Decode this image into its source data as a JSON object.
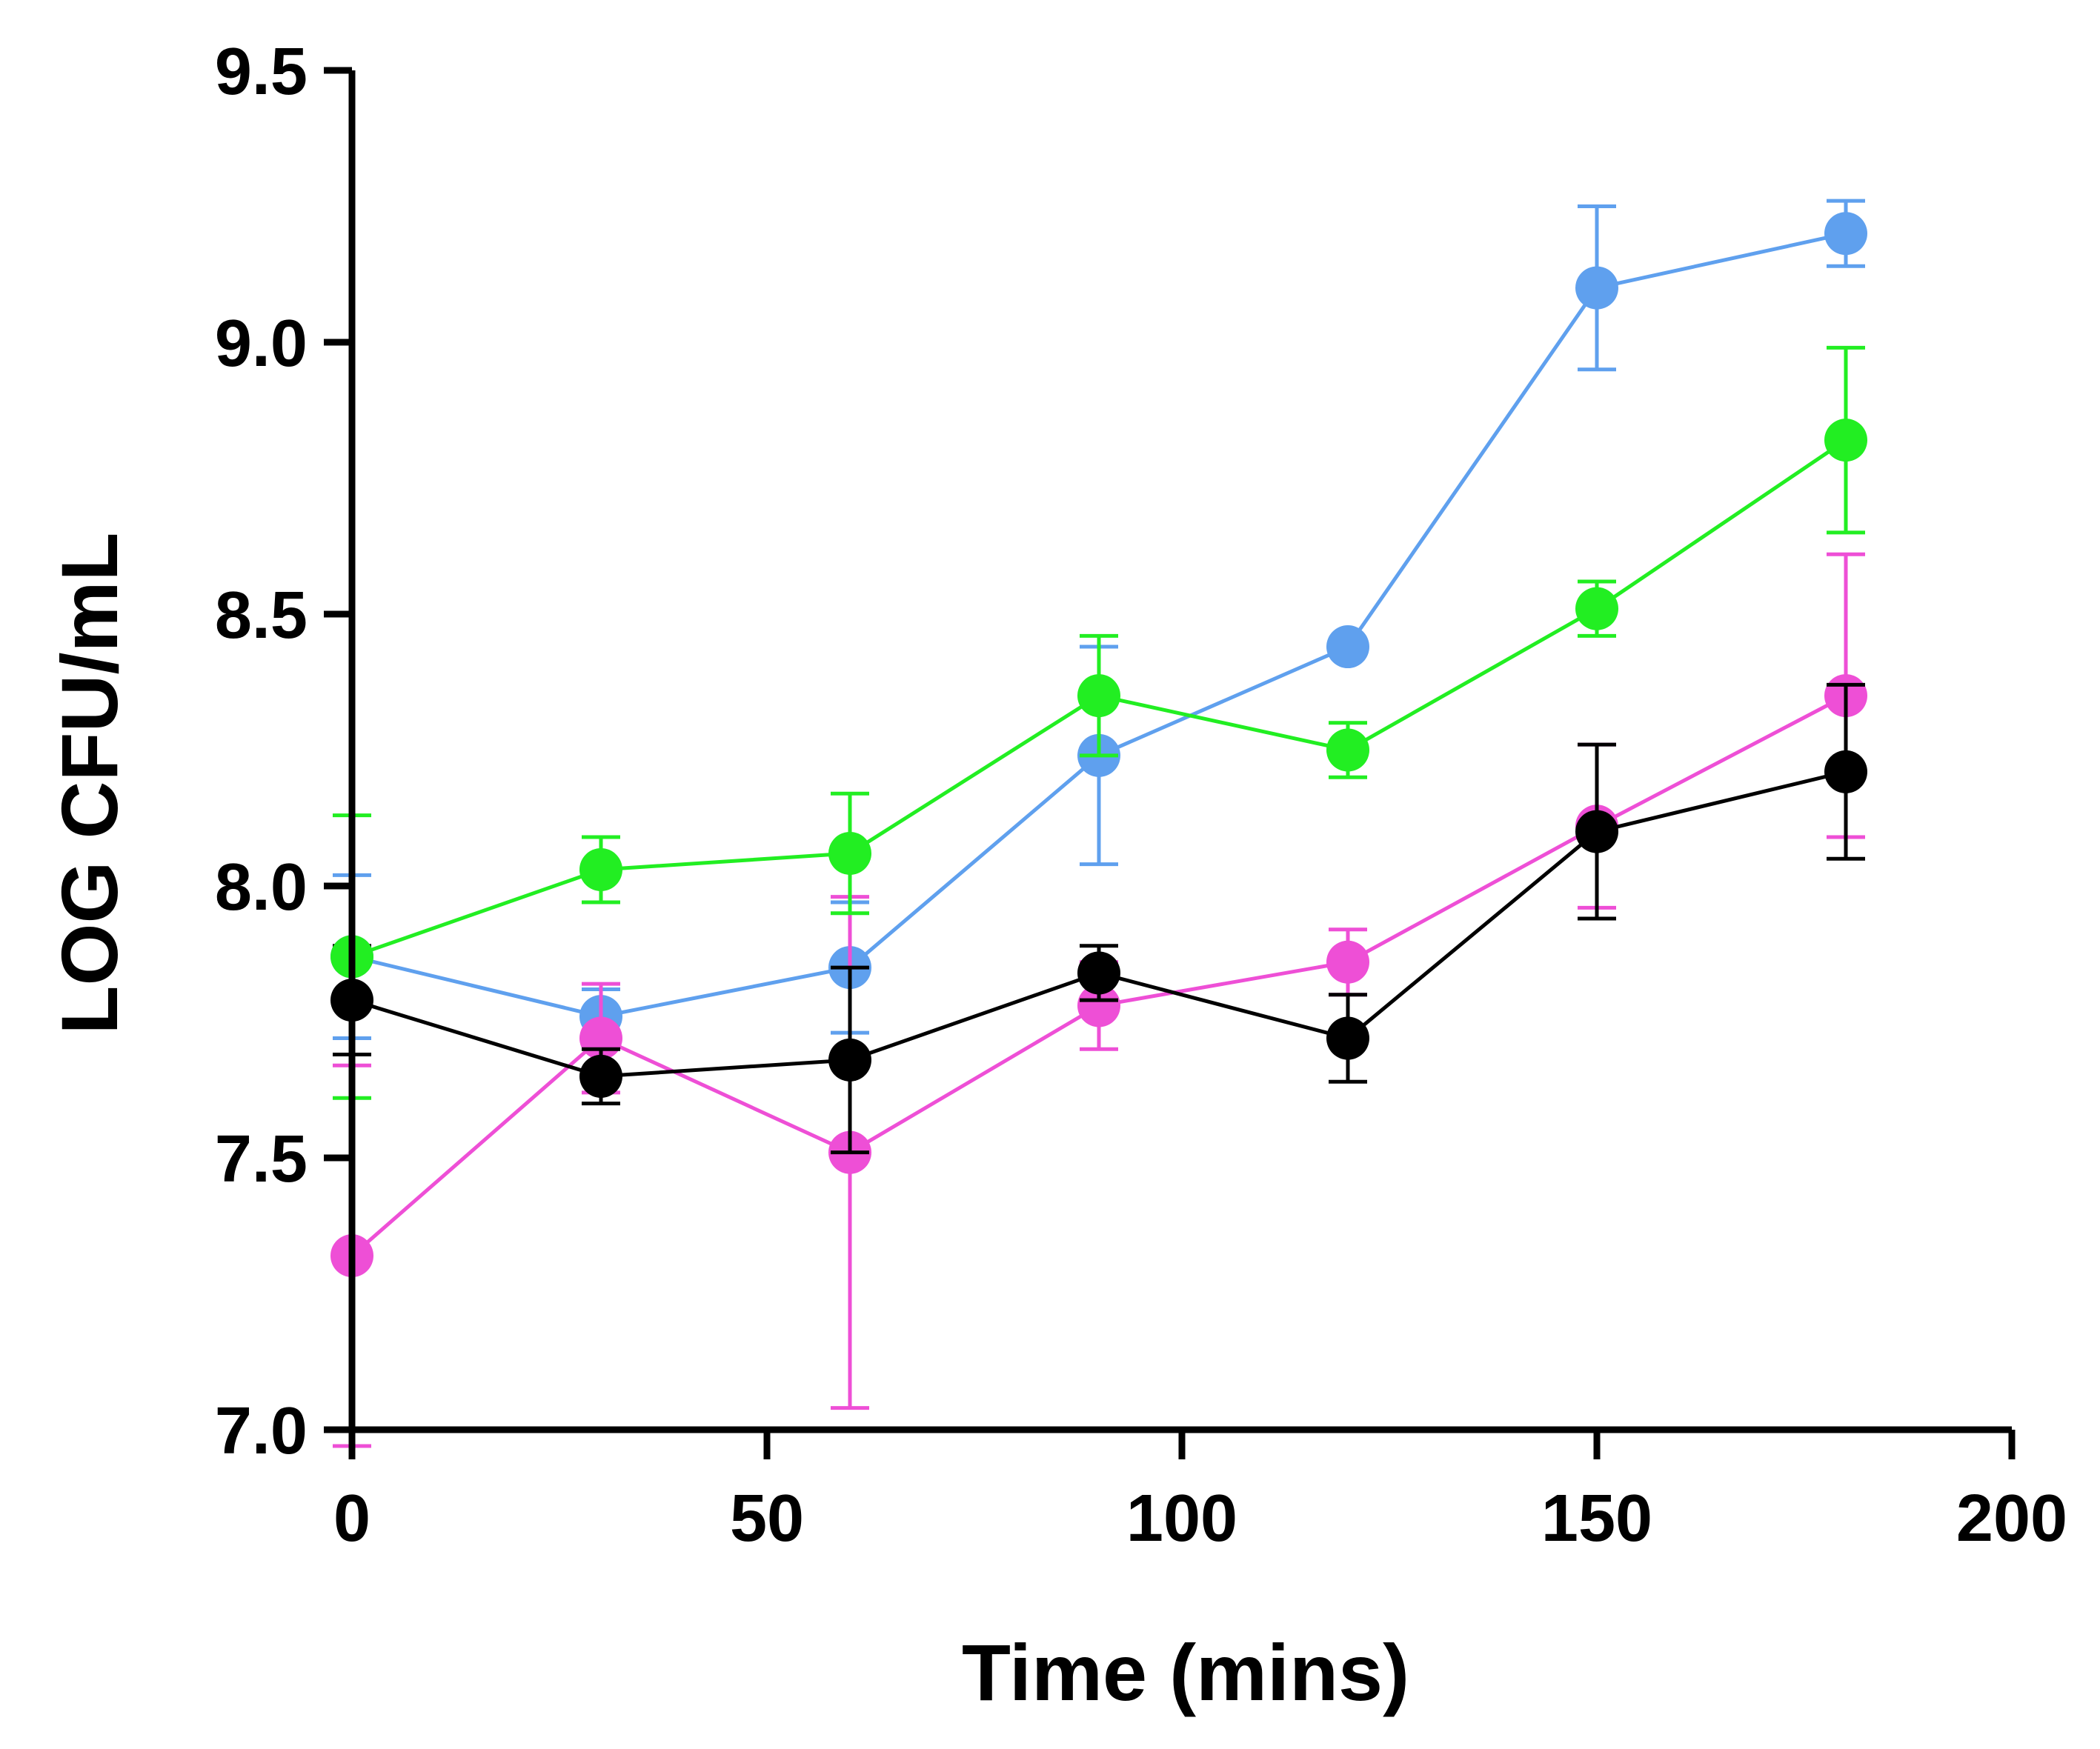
{
  "chart_data": {
    "type": "line",
    "title": "",
    "xlabel": "Time (mins)",
    "ylabel": "LOG CFU/mL",
    "xlim": [
      0,
      200
    ],
    "ylim": [
      7.0,
      9.5
    ],
    "x_ticks": [
      0,
      50,
      100,
      150,
      200
    ],
    "x_tick_labels": [
      "0",
      "50",
      "100",
      "150",
      "200"
    ],
    "y_ticks": [
      7.0,
      7.5,
      8.0,
      8.5,
      9.0,
      9.5
    ],
    "y_tick_labels": [
      "7.0",
      "7.5",
      "8.0",
      "8.5",
      "9.0",
      "9.5"
    ],
    "grid": false,
    "x": [
      0,
      30,
      60,
      90,
      120,
      150,
      180
    ],
    "series": [
      {
        "name": "blue",
        "color": "#5fa0ee",
        "values": [
          7.87,
          7.76,
          7.85,
          8.24,
          8.44,
          9.1,
          9.2
        ],
        "errors": [
          0.15,
          0.05,
          0.12,
          0.2,
          0.0,
          0.15,
          0.06
        ]
      },
      {
        "name": "magenta",
        "color": "#ee4fd6",
        "values": [
          7.32,
          7.72,
          7.51,
          7.78,
          7.86,
          8.11,
          8.35
        ],
        "errors": [
          0.35,
          0.1,
          0.47,
          0.08,
          0.06,
          0.15,
          0.26
        ]
      },
      {
        "name": "black",
        "color": "#000000",
        "values": [
          7.79,
          7.65,
          7.68,
          7.84,
          7.72,
          8.1,
          8.21
        ],
        "errors": [
          0.1,
          0.05,
          0.17,
          0.05,
          0.08,
          0.16,
          0.16
        ]
      },
      {
        "name": "green",
        "color": "#22ee22",
        "values": [
          7.87,
          8.03,
          8.06,
          8.35,
          8.25,
          8.51,
          8.82
        ],
        "errors": [
          0.26,
          0.06,
          0.11,
          0.11,
          0.05,
          0.05,
          0.17
        ]
      }
    ]
  }
}
